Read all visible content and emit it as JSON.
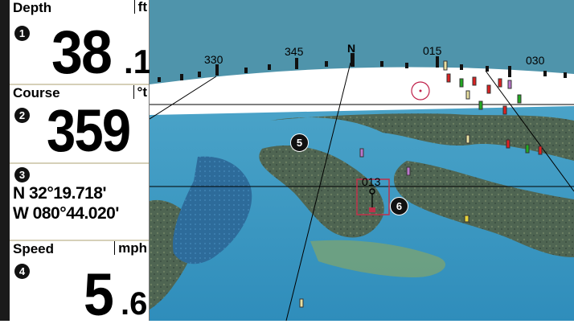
{
  "depth": {
    "label": "Depth",
    "unit": "ft",
    "badge": "1",
    "value_whole": "38",
    "value_decimal": ".1"
  },
  "course": {
    "label": "Course",
    "unit": "°t",
    "badge": "2",
    "value": "359"
  },
  "position": {
    "badge": "3",
    "latitude": "N 32°19.718'",
    "longitude": "W 080°44.020'"
  },
  "speed": {
    "label": "Speed",
    "unit": "mph",
    "badge": "4",
    "value_whole": "5",
    "value_decimal": ".6"
  },
  "chart": {
    "heading_ticks": [
      "330",
      "345",
      "N",
      "015",
      "030"
    ],
    "cursor_label": "013",
    "markers": [
      "5",
      "6"
    ]
  },
  "colors": {
    "sky": "#4f94ab",
    "horizon": "#ffffff",
    "water": "#3d9bc4",
    "land": "#566a55"
  }
}
